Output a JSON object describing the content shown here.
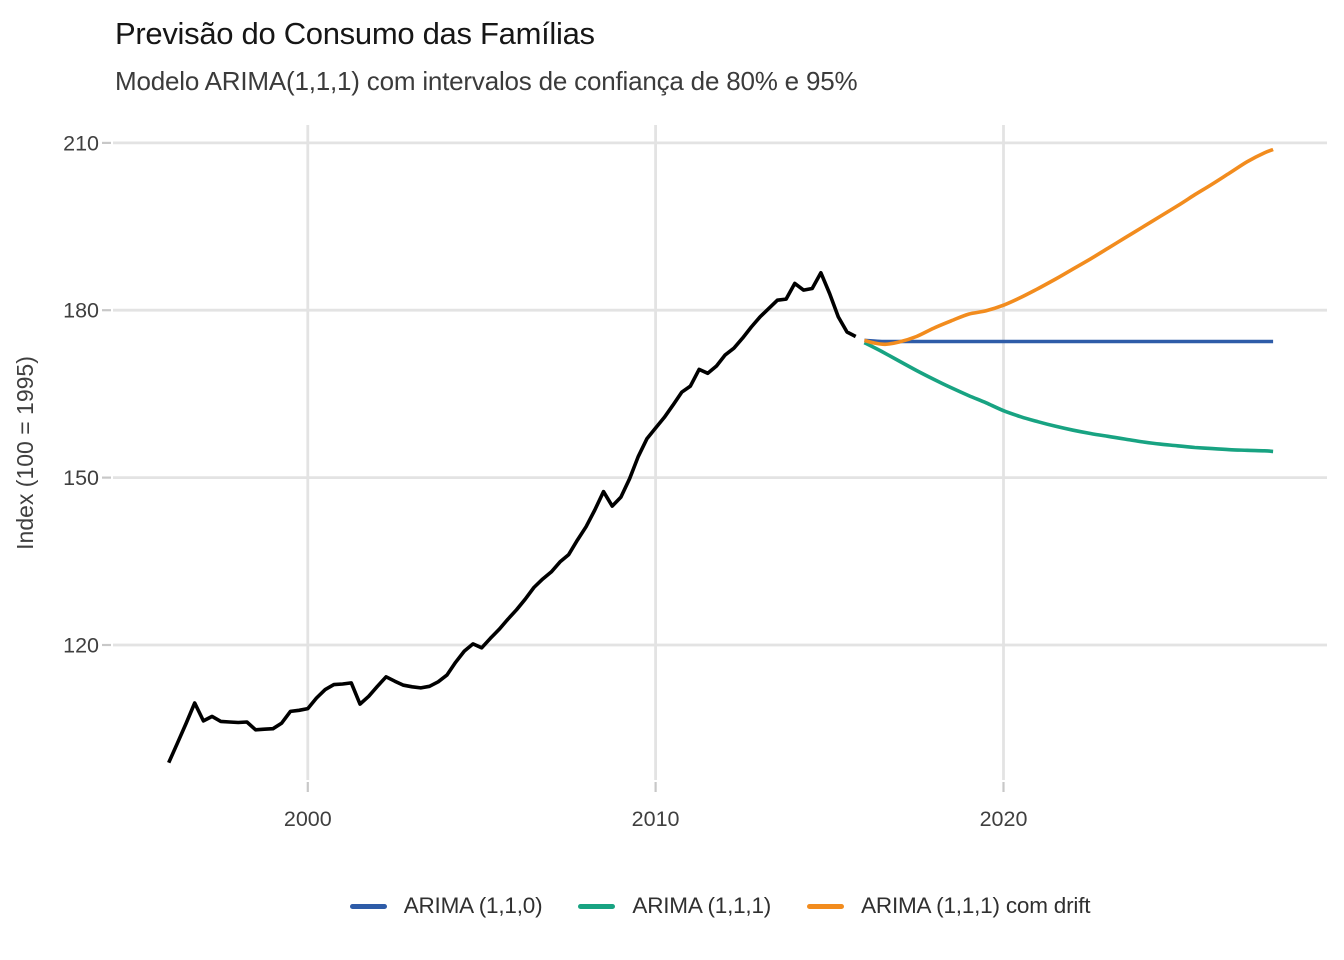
{
  "chart_data": {
    "type": "line",
    "title": "Previsão do Consumo das Famílias",
    "subtitle": "Modelo ARIMA(1,1,1) com intervalos de confiança de 80% e 95%",
    "xlabel": "",
    "ylabel": "Index (100 = 1995)",
    "x_ticks": [
      2000,
      2010,
      2020
    ],
    "y_ticks": [
      120,
      150,
      180,
      210
    ],
    "xlim": [
      1994.4,
      2029.3
    ],
    "ylim": [
      95.8,
      213.2
    ],
    "grid": true,
    "legend_position": "bottom",
    "colors": {
      "historical": "#000000",
      "arima110": "#2E5CA8",
      "arima111": "#18A382",
      "arima111_drift": "#F28C1E",
      "gridline": "#E3E3E3",
      "tick_mark": "#C8C8C8",
      "tick_label": "#3F3F3F",
      "axis_title": "#3F3F3F",
      "title_text": "#161616",
      "subtitle_text": "#3B3B3B",
      "legend_text": "#303030"
    },
    "series": [
      {
        "name": "Consumo observado",
        "color": "#000000",
        "width": 3.6,
        "smooth": false,
        "in_legend": false,
        "points": [
          [
            1996.0,
            98.9
          ],
          [
            1996.25,
            102.4
          ],
          [
            1996.5,
            105.9
          ],
          [
            1996.75,
            109.6
          ],
          [
            1997.0,
            106.4
          ],
          [
            1997.25,
            107.2
          ],
          [
            1997.5,
            106.3
          ],
          [
            1997.75,
            106.2
          ],
          [
            1998.0,
            106.1
          ],
          [
            1998.25,
            106.2
          ],
          [
            1998.5,
            104.8
          ],
          [
            1998.75,
            104.9
          ],
          [
            1999.0,
            105.0
          ],
          [
            1999.25,
            106.0
          ],
          [
            1999.5,
            108.1
          ],
          [
            1999.75,
            108.3
          ],
          [
            2000.0,
            108.6
          ],
          [
            2000.25,
            110.5
          ],
          [
            2000.5,
            112.0
          ],
          [
            2000.75,
            112.9
          ],
          [
            2001.0,
            113.0
          ],
          [
            2001.25,
            113.2
          ],
          [
            2001.5,
            109.4
          ],
          [
            2001.75,
            110.8
          ],
          [
            2002.0,
            112.6
          ],
          [
            2002.25,
            114.3
          ],
          [
            2002.5,
            113.5
          ],
          [
            2002.75,
            112.8
          ],
          [
            2003.0,
            112.5
          ],
          [
            2003.25,
            112.3
          ],
          [
            2003.5,
            112.6
          ],
          [
            2003.75,
            113.4
          ],
          [
            2004.0,
            114.6
          ],
          [
            2004.25,
            116.9
          ],
          [
            2004.5,
            118.9
          ],
          [
            2004.75,
            120.2
          ],
          [
            2005.0,
            119.5
          ],
          [
            2005.25,
            121.2
          ],
          [
            2005.5,
            122.8
          ],
          [
            2005.75,
            124.6
          ],
          [
            2006.0,
            126.3
          ],
          [
            2006.25,
            128.2
          ],
          [
            2006.5,
            130.3
          ],
          [
            2006.75,
            131.8
          ],
          [
            2007.0,
            133.1
          ],
          [
            2007.25,
            134.9
          ],
          [
            2007.5,
            136.2
          ],
          [
            2007.75,
            138.8
          ],
          [
            2008.0,
            141.2
          ],
          [
            2008.25,
            144.2
          ],
          [
            2008.5,
            147.5
          ],
          [
            2008.75,
            144.9
          ],
          [
            2009.0,
            146.5
          ],
          [
            2009.25,
            149.8
          ],
          [
            2009.5,
            153.8
          ],
          [
            2009.75,
            157.0
          ],
          [
            2010.0,
            158.9
          ],
          [
            2010.25,
            160.8
          ],
          [
            2010.5,
            163.0
          ],
          [
            2010.75,
            165.3
          ],
          [
            2011.0,
            166.4
          ],
          [
            2011.25,
            169.4
          ],
          [
            2011.5,
            168.7
          ],
          [
            2011.75,
            170.0
          ],
          [
            2012.0,
            172.0
          ],
          [
            2012.25,
            173.2
          ],
          [
            2012.5,
            175.0
          ],
          [
            2012.75,
            177.0
          ],
          [
            2013.0,
            178.8
          ],
          [
            2013.25,
            180.3
          ],
          [
            2013.5,
            181.8
          ],
          [
            2013.75,
            182.0
          ],
          [
            2014.0,
            184.8
          ],
          [
            2014.25,
            183.6
          ],
          [
            2014.5,
            183.9
          ],
          [
            2014.75,
            186.7
          ],
          [
            2015.0,
            183.0
          ],
          [
            2015.25,
            178.8
          ],
          [
            2015.5,
            176.1
          ],
          [
            2015.75,
            175.3
          ]
        ]
      },
      {
        "name": "ARIMA (1,1,0)",
        "color": "#2E5CA8",
        "width": 3.6,
        "smooth": true,
        "in_legend": true,
        "points": [
          [
            2016.0,
            174.6
          ],
          [
            2016.5,
            174.4
          ],
          [
            2017.0,
            174.4
          ],
          [
            2019.0,
            174.4
          ],
          [
            2022.0,
            174.4
          ],
          [
            2025.0,
            174.4
          ],
          [
            2027.75,
            174.4
          ]
        ]
      },
      {
        "name": "ARIMA (1,1,1)",
        "color": "#18A382",
        "width": 3.6,
        "smooth": true,
        "in_legend": true,
        "points": [
          [
            2016.0,
            174.2
          ],
          [
            2016.5,
            172.6
          ],
          [
            2017.0,
            170.9
          ],
          [
            2017.5,
            169.2
          ],
          [
            2018.0,
            167.6
          ],
          [
            2018.5,
            166.1
          ],
          [
            2019.0,
            164.7
          ],
          [
            2019.5,
            163.4
          ],
          [
            2020.0,
            162.0
          ],
          [
            2020.5,
            160.9
          ],
          [
            2021.0,
            160.0
          ],
          [
            2021.5,
            159.2
          ],
          [
            2022.0,
            158.5
          ],
          [
            2022.5,
            157.9
          ],
          [
            2023.0,
            157.4
          ],
          [
            2023.5,
            156.9
          ],
          [
            2024.0,
            156.4
          ],
          [
            2024.5,
            156.0
          ],
          [
            2025.0,
            155.7
          ],
          [
            2025.5,
            155.4
          ],
          [
            2026.0,
            155.2
          ],
          [
            2026.5,
            155.0
          ],
          [
            2027.0,
            154.9
          ],
          [
            2027.5,
            154.8
          ],
          [
            2027.75,
            154.7
          ]
        ]
      },
      {
        "name": "ARIMA (1,1,1) com drift",
        "color": "#F28C1E",
        "width": 3.6,
        "smooth": true,
        "in_legend": true,
        "points": [
          [
            2016.0,
            174.6
          ],
          [
            2016.3,
            174.1
          ],
          [
            2016.6,
            173.9
          ],
          [
            2017.0,
            174.3
          ],
          [
            2017.5,
            175.3
          ],
          [
            2018.0,
            176.8
          ],
          [
            2018.5,
            178.1
          ],
          [
            2019.0,
            179.3
          ],
          [
            2019.5,
            179.9
          ],
          [
            2020.0,
            180.9
          ],
          [
            2020.5,
            182.3
          ],
          [
            2021.0,
            183.9
          ],
          [
            2021.5,
            185.6
          ],
          [
            2022.0,
            187.4
          ],
          [
            2022.5,
            189.2
          ],
          [
            2023.0,
            191.1
          ],
          [
            2023.5,
            193.0
          ],
          [
            2024.0,
            194.9
          ],
          [
            2024.5,
            196.8
          ],
          [
            2025.0,
            198.7
          ],
          [
            2025.5,
            200.7
          ],
          [
            2026.0,
            202.6
          ],
          [
            2026.5,
            204.6
          ],
          [
            2027.0,
            206.6
          ],
          [
            2027.5,
            208.2
          ],
          [
            2027.75,
            208.8
          ]
        ]
      }
    ],
    "legend": [
      {
        "label": "ARIMA (1,1,0)",
        "color": "#2E5CA8"
      },
      {
        "label": "ARIMA (1,1,1)",
        "color": "#18A382"
      },
      {
        "label": "ARIMA (1,1,1) com drift",
        "color": "#F28C1E"
      }
    ]
  }
}
